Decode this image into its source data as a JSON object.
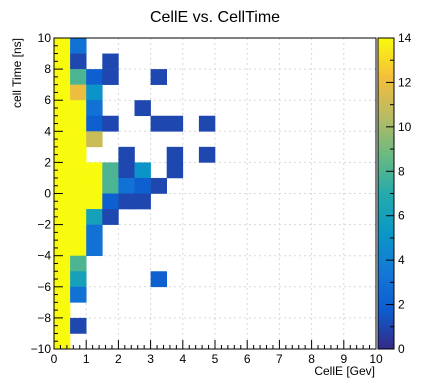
{
  "chart_data": {
    "type": "heatmap",
    "title": "CellE vs. CellTime",
    "xlabel": "CellE [Gev]",
    "ylabel": "cell Time [ns]",
    "xlim": [
      0,
      10
    ],
    "ylim": [
      -10,
      10
    ],
    "x_ticks": [
      "0",
      "1",
      "2",
      "3",
      "4",
      "5",
      "6",
      "7",
      "8",
      "9",
      "10"
    ],
    "y_ticks": [
      "−10",
      "−8",
      "−6",
      "−4",
      "−2",
      "0",
      "2",
      "4",
      "6",
      "8",
      "10"
    ],
    "z_ticks": [
      "0",
      "2",
      "4",
      "6",
      "8",
      "10",
      "12",
      "14"
    ],
    "zlim": [
      0,
      14
    ],
    "grid": true,
    "legend": "colorbar-right",
    "bin_width_x": 0.5,
    "bin_width_y": 1,
    "cells": [
      [
        0.0,
        -10,
        14
      ],
      [
        0.0,
        -9,
        14
      ],
      [
        0.0,
        -8,
        14
      ],
      [
        0.0,
        -7,
        14
      ],
      [
        0.0,
        -6,
        14
      ],
      [
        0.0,
        -5,
        14
      ],
      [
        0.0,
        -4,
        14
      ],
      [
        0.0,
        -3,
        14
      ],
      [
        0.0,
        -2,
        14
      ],
      [
        0.0,
        -1,
        14
      ],
      [
        0.0,
        0,
        14
      ],
      [
        0.0,
        1,
        14
      ],
      [
        0.0,
        2,
        14
      ],
      [
        0.0,
        3,
        14
      ],
      [
        0.0,
        4,
        14
      ],
      [
        0.0,
        5,
        14
      ],
      [
        0.0,
        6,
        14
      ],
      [
        0.0,
        7,
        14
      ],
      [
        0.0,
        8,
        14
      ],
      [
        0.0,
        9,
        14
      ],
      [
        0.5,
        9,
        3
      ],
      [
        0.5,
        8,
        1
      ],
      [
        0.5,
        7,
        8
      ],
      [
        0.5,
        6,
        12
      ],
      [
        0.5,
        5,
        14
      ],
      [
        0.5,
        4,
        14
      ],
      [
        0.5,
        3,
        14
      ],
      [
        0.5,
        2,
        14
      ],
      [
        0.5,
        1,
        14
      ],
      [
        0.5,
        0,
        14
      ],
      [
        0.5,
        -1,
        14
      ],
      [
        0.5,
        -2,
        14
      ],
      [
        0.5,
        -3,
        14
      ],
      [
        0.5,
        -4,
        14
      ],
      [
        0.5,
        -5,
        8
      ],
      [
        0.5,
        -6,
        6
      ],
      [
        0.5,
        -7,
        3
      ],
      [
        0.5,
        -9,
        1
      ],
      [
        1.0,
        7,
        2
      ],
      [
        1.0,
        6,
        5
      ],
      [
        1.0,
        5,
        3
      ],
      [
        1.0,
        4,
        2
      ],
      [
        1.0,
        3,
        11
      ],
      [
        1.0,
        1,
        14
      ],
      [
        1.0,
        0,
        14
      ],
      [
        1.0,
        -1,
        14
      ],
      [
        1.0,
        -2,
        6
      ],
      [
        1.0,
        -3,
        3
      ],
      [
        1.0,
        -4,
        3
      ],
      [
        1.5,
        8,
        1
      ],
      [
        1.5,
        7,
        1
      ],
      [
        1.5,
        4,
        1
      ],
      [
        1.5,
        0,
        8
      ],
      [
        1.5,
        1,
        8
      ],
      [
        1.5,
        -1,
        2
      ],
      [
        1.5,
        -2,
        1
      ],
      [
        2.0,
        2,
        1
      ],
      [
        2.0,
        1,
        1
      ],
      [
        2.0,
        0,
        3
      ],
      [
        2.0,
        -1,
        1
      ],
      [
        2.5,
        5,
        1
      ],
      [
        2.5,
        1,
        5
      ],
      [
        2.5,
        0,
        2
      ],
      [
        2.5,
        -1,
        1
      ],
      [
        3.0,
        7,
        1
      ],
      [
        3.0,
        4,
        1
      ],
      [
        3.0,
        0,
        1
      ],
      [
        3.0,
        -6,
        2
      ],
      [
        3.5,
        4,
        1
      ],
      [
        3.5,
        2,
        1
      ],
      [
        3.5,
        1,
        1
      ],
      [
        4.5,
        4,
        1
      ],
      [
        4.5,
        2,
        1
      ]
    ]
  }
}
